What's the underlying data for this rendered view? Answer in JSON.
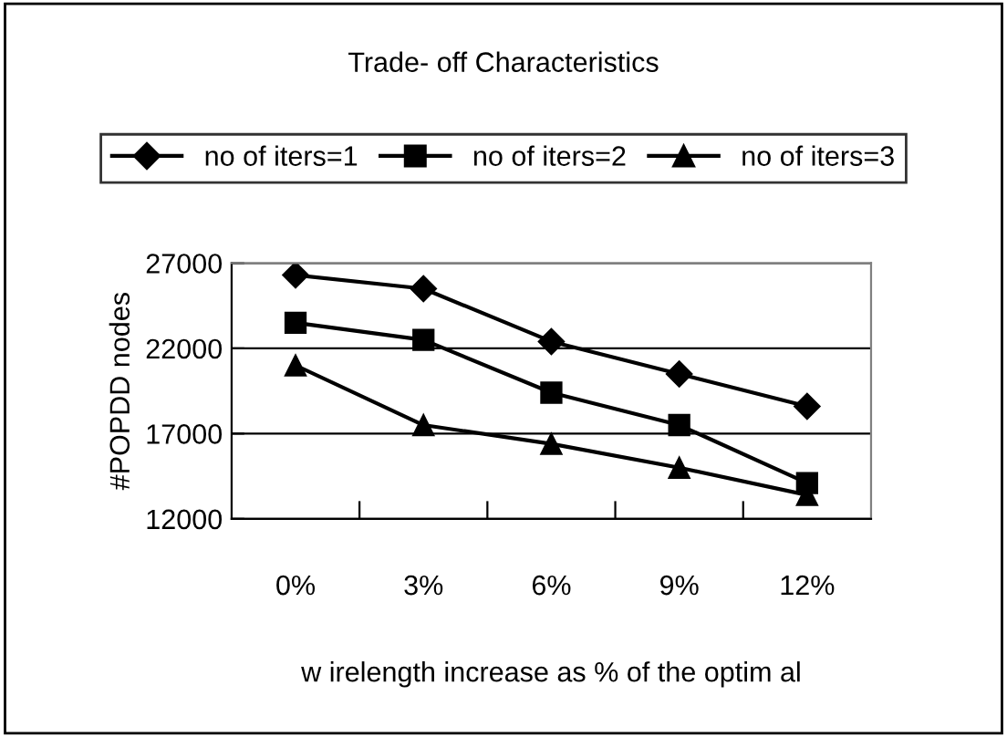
{
  "chart_data": {
    "type": "line",
    "title": "Trade- off Characteristics",
    "xlabel": "w irelength increase as % of the optim al",
    "ylabel": "#POPDD nodes",
    "categories": [
      "0%",
      "3%",
      "6%",
      "9%",
      "12%"
    ],
    "series": [
      {
        "name": "no of iters=1",
        "color": "#000000",
        "marker": "diamond",
        "values": [
          26300,
          25500,
          22400,
          20500,
          18600
        ]
      },
      {
        "name": "no of iters=2",
        "color": "#000000",
        "marker": "square",
        "values": [
          23500,
          22500,
          19400,
          17500,
          14100
        ]
      },
      {
        "name": "no of iters=3",
        "color": "#000000",
        "marker": "triangle",
        "values": [
          21000,
          17500,
          16400,
          15000,
          13400
        ]
      }
    ],
    "ylim": [
      12000,
      27000
    ],
    "yticks": [
      12000,
      17000,
      22000,
      27000
    ],
    "grid": "y",
    "legend": "top",
    "line_style": "solid"
  }
}
